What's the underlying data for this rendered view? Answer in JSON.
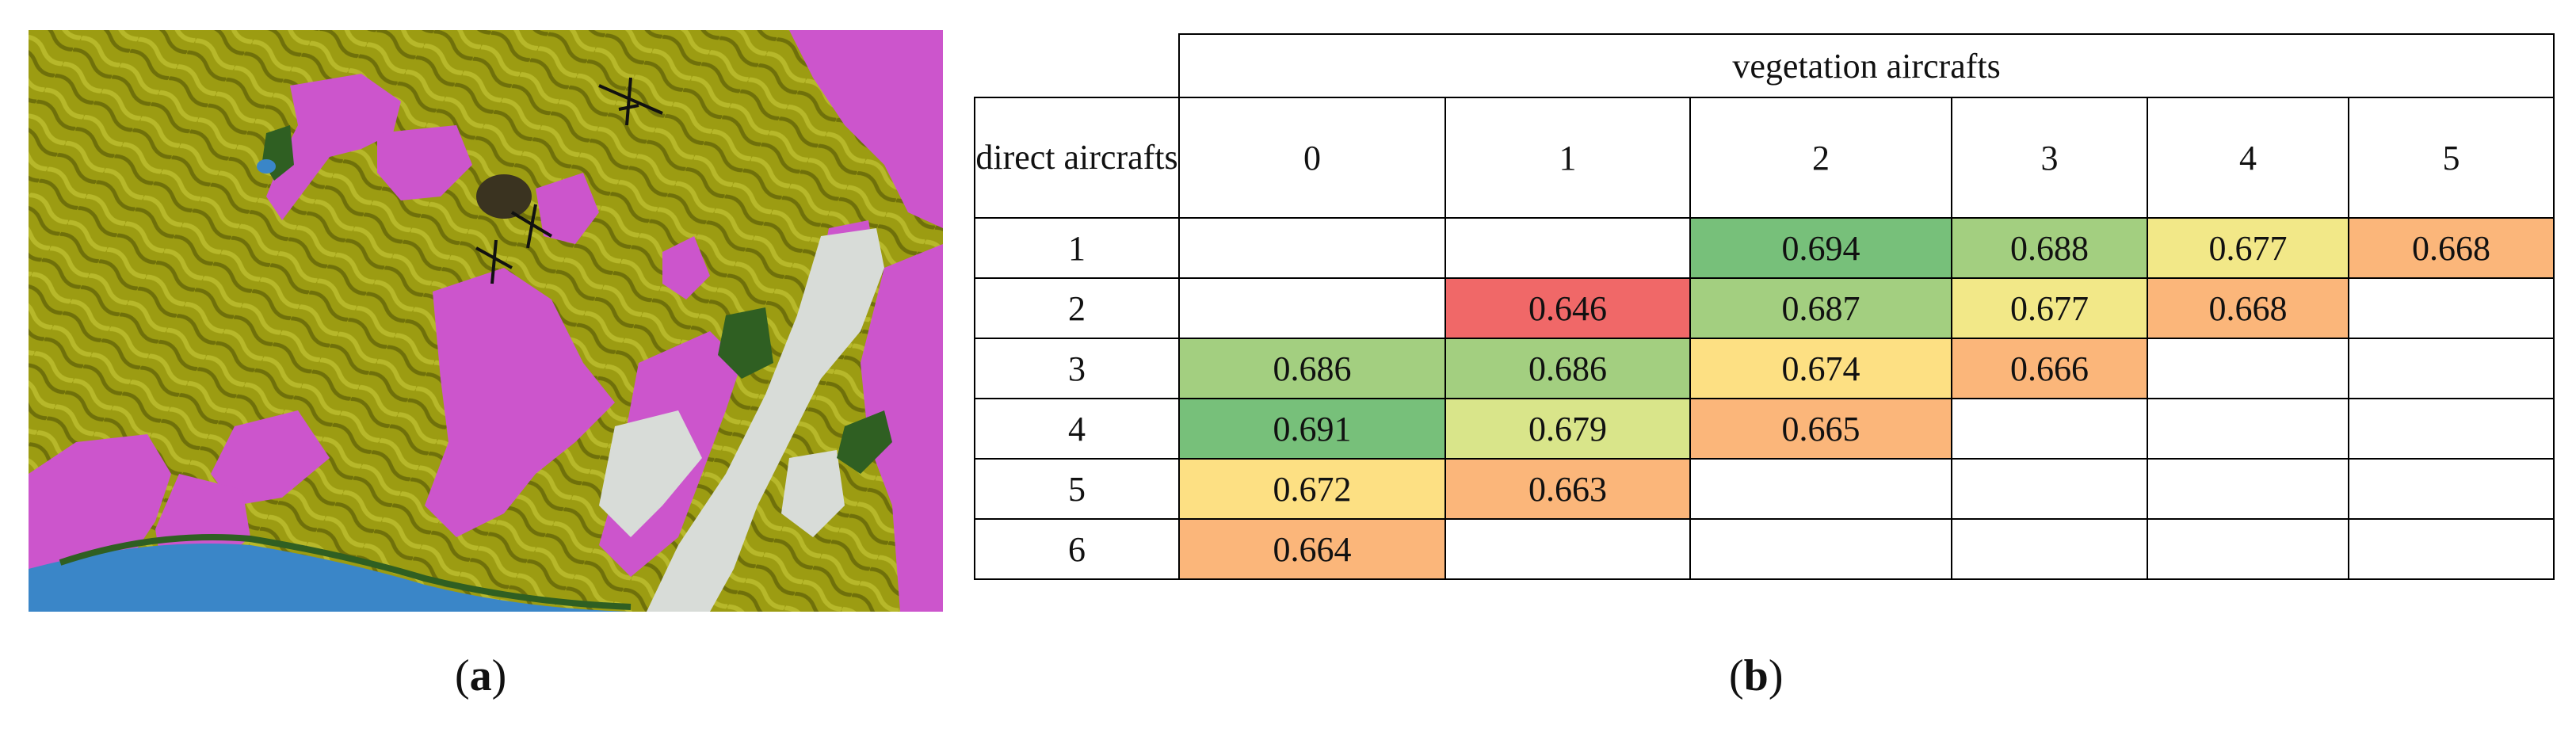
{
  "figure": {
    "caption_a": "a",
    "caption_b": "b"
  },
  "table": {
    "column_group_header": "vegetation aircrafts",
    "row_header": "direct aircrafts",
    "columns": [
      "0",
      "1",
      "2",
      "3",
      "4",
      "5"
    ],
    "rows": [
      {
        "label": "1",
        "cells": [
          "",
          "",
          "0.694",
          "0.688",
          "0.677",
          "0.668"
        ]
      },
      {
        "label": "2",
        "cells": [
          "",
          "0.646",
          "0.687",
          "0.677",
          "0.668",
          ""
        ]
      },
      {
        "label": "3",
        "cells": [
          "0.686",
          "0.686",
          "0.674",
          "0.666",
          "",
          ""
        ]
      },
      {
        "label": "4",
        "cells": [
          "0.691",
          "0.679",
          "0.665",
          "",
          "",
          ""
        ]
      },
      {
        "label": "5",
        "cells": [
          "0.672",
          "0.663",
          "",
          "",
          "",
          ""
        ]
      },
      {
        "label": "6",
        "cells": [
          "0.664",
          "",
          "",
          "",
          "",
          ""
        ]
      }
    ]
  },
  "map_colors": {
    "terrain": "#9a9a10",
    "burned_area": "#cc55cc",
    "water": "#3a86c8",
    "urban": "#d8dcd8",
    "forest": "#2f5f22"
  }
}
